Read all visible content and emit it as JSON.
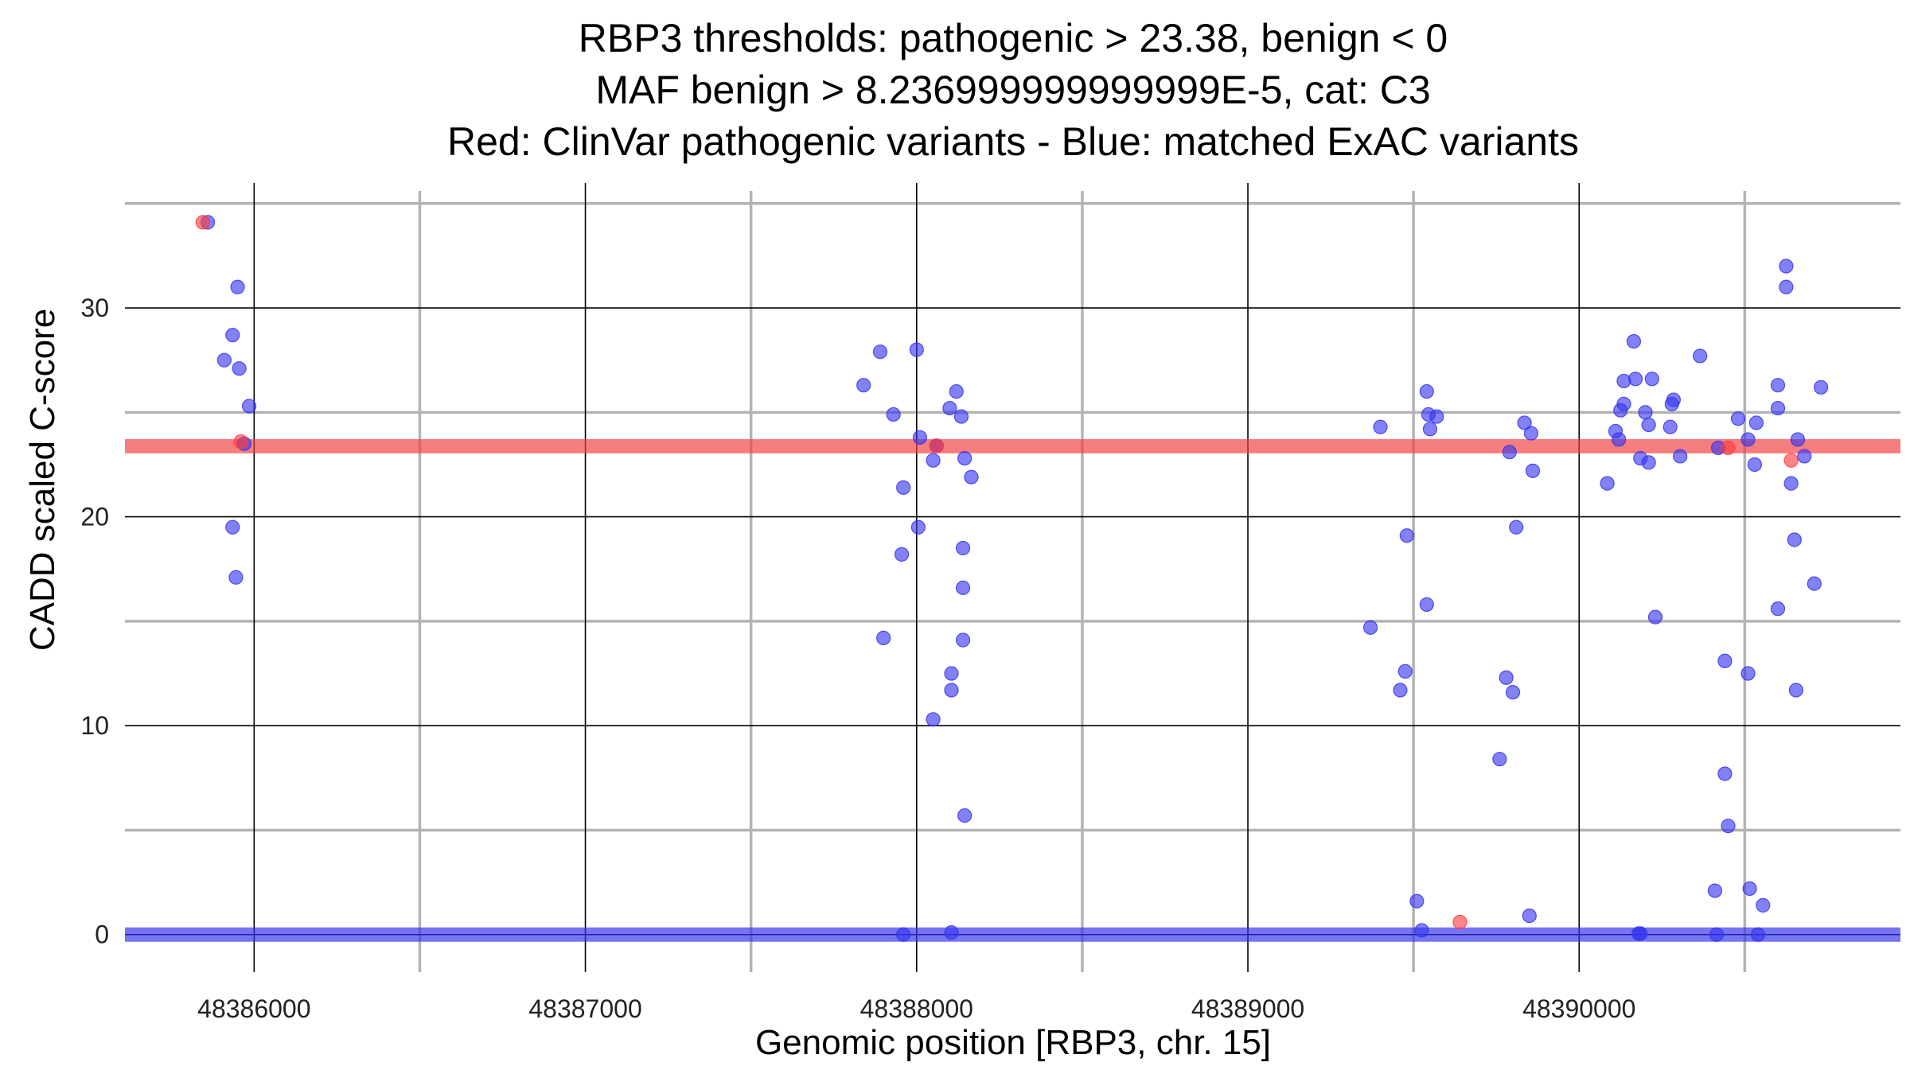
{
  "chart_data": {
    "type": "scatter",
    "title": [
      "RBP3 thresholds: pathogenic > 23.38, benign < 0",
      "MAF benign > 8.236999999999999E-5, cat: C3",
      "Red: ClinVar pathogenic variants - Blue: matched ExAC variants"
    ],
    "xlabel": "Genomic position [RBP3, chr. 15]",
    "ylabel": "CADD scaled C-score",
    "xlim": [
      48385610,
      48390970
    ],
    "ylim": [
      -1.8,
      35.6
    ],
    "x_ticks": [
      48386000,
      48387000,
      48388000,
      48389000,
      48390000
    ],
    "x_tick_labels": [
      "48386000",
      "48387000",
      "48388000",
      "48389000",
      "48390000"
    ],
    "x_minor_ticks": [
      48385500,
      48386500,
      48387500,
      48388500,
      48389500,
      48390500
    ],
    "y_ticks": [
      0,
      10,
      20,
      30
    ],
    "y_tick_labels": [
      "0",
      "10",
      "20",
      "30"
    ],
    "y_minor_ticks": [
      5,
      15,
      25,
      35
    ],
    "thresholds": [
      {
        "name": "pathogenic",
        "value": 23.38,
        "color": "#f04040"
      },
      {
        "name": "benign",
        "value": 0,
        "color": "#3333ee"
      }
    ],
    "series": [
      {
        "name": "ClinVar pathogenic variants",
        "color": "#ff3b3b",
        "points": [
          [
            48385845,
            34.1
          ],
          [
            48385960,
            23.6
          ],
          [
            48388060,
            23.4
          ],
          [
            48389640,
            0.6
          ],
          [
            48390450,
            23.3
          ],
          [
            48390640,
            22.7
          ]
        ]
      },
      {
        "name": "matched ExAC variants",
        "color": "#3535f0",
        "points": [
          [
            48385860,
            34.1
          ],
          [
            48385950,
            31.0
          ],
          [
            48385935,
            28.7
          ],
          [
            48385910,
            27.5
          ],
          [
            48385955,
            27.1
          ],
          [
            48385985,
            25.3
          ],
          [
            48385970,
            23.5
          ],
          [
            48385935,
            19.5
          ],
          [
            48385945,
            17.1
          ],
          [
            48387840,
            26.3
          ],
          [
            48387890,
            27.9
          ],
          [
            48388000,
            28.0
          ],
          [
            48387930,
            24.9
          ],
          [
            48388120,
            26.0
          ],
          [
            48388100,
            25.2
          ],
          [
            48388135,
            24.8
          ],
          [
            48388010,
            23.8
          ],
          [
            48388060,
            23.4
          ],
          [
            48388050,
            22.7
          ],
          [
            48388145,
            22.8
          ],
          [
            48388165,
            21.9
          ],
          [
            48387960,
            21.4
          ],
          [
            48388005,
            19.5
          ],
          [
            48387955,
            18.2
          ],
          [
            48388140,
            18.5
          ],
          [
            48388140,
            16.6
          ],
          [
            48387900,
            14.2
          ],
          [
            48388140,
            14.1
          ],
          [
            48388105,
            12.5
          ],
          [
            48388105,
            11.7
          ],
          [
            48388050,
            10.3
          ],
          [
            48388145,
            5.7
          ],
          [
            48387960,
            0.0
          ],
          [
            48388105,
            0.1
          ],
          [
            48389400,
            24.3
          ],
          [
            48389370,
            14.7
          ],
          [
            48389480,
            19.1
          ],
          [
            48389475,
            12.6
          ],
          [
            48389460,
            11.7
          ],
          [
            48389510,
            1.6
          ],
          [
            48389525,
            0.2
          ],
          [
            48389540,
            26.0
          ],
          [
            48389545,
            24.9
          ],
          [
            48389570,
            24.8
          ],
          [
            48389550,
            24.2
          ],
          [
            48389540,
            15.8
          ],
          [
            48389790,
            23.1
          ],
          [
            48389835,
            24.5
          ],
          [
            48389855,
            24.0
          ],
          [
            48389860,
            22.2
          ],
          [
            48389810,
            19.5
          ],
          [
            48389780,
            12.3
          ],
          [
            48389800,
            11.6
          ],
          [
            48389760,
            8.4
          ],
          [
            48389850,
            0.9
          ],
          [
            48390085,
            21.6
          ],
          [
            48390110,
            24.1
          ],
          [
            48390125,
            25.1
          ],
          [
            48390135,
            26.5
          ],
          [
            48390135,
            25.4
          ],
          [
            48390120,
            23.7
          ],
          [
            48390165,
            28.4
          ],
          [
            48390170,
            26.6
          ],
          [
            48390185,
            22.8
          ],
          [
            48390200,
            25.0
          ],
          [
            48390210,
            24.4
          ],
          [
            48390210,
            22.6
          ],
          [
            48390220,
            26.6
          ],
          [
            48390230,
            15.2
          ],
          [
            48390275,
            24.3
          ],
          [
            48390280,
            25.4
          ],
          [
            48390285,
            25.6
          ],
          [
            48390305,
            22.9
          ],
          [
            48390180,
            0.05
          ],
          [
            48390185,
            0.05
          ],
          [
            48390365,
            27.7
          ],
          [
            48390420,
            23.3
          ],
          [
            48390480,
            24.7
          ],
          [
            48390510,
            23.7
          ],
          [
            48390535,
            24.5
          ],
          [
            48390530,
            22.5
          ],
          [
            48390440,
            13.1
          ],
          [
            48390510,
            12.5
          ],
          [
            48390440,
            7.7
          ],
          [
            48390450,
            5.2
          ],
          [
            48390410,
            2.1
          ],
          [
            48390515,
            2.2
          ],
          [
            48390555,
            1.4
          ],
          [
            48390415,
            0.0
          ],
          [
            48390540,
            0.0
          ],
          [
            48390600,
            26.3
          ],
          [
            48390600,
            25.2
          ],
          [
            48390625,
            32.0
          ],
          [
            48390625,
            31.0
          ],
          [
            48390660,
            23.7
          ],
          [
            48390680,
            22.9
          ],
          [
            48390640,
            21.6
          ],
          [
            48390650,
            18.9
          ],
          [
            48390600,
            15.6
          ],
          [
            48390655,
            11.7
          ],
          [
            48390710,
            16.8
          ],
          [
            48390730,
            26.2
          ]
        ]
      }
    ]
  }
}
